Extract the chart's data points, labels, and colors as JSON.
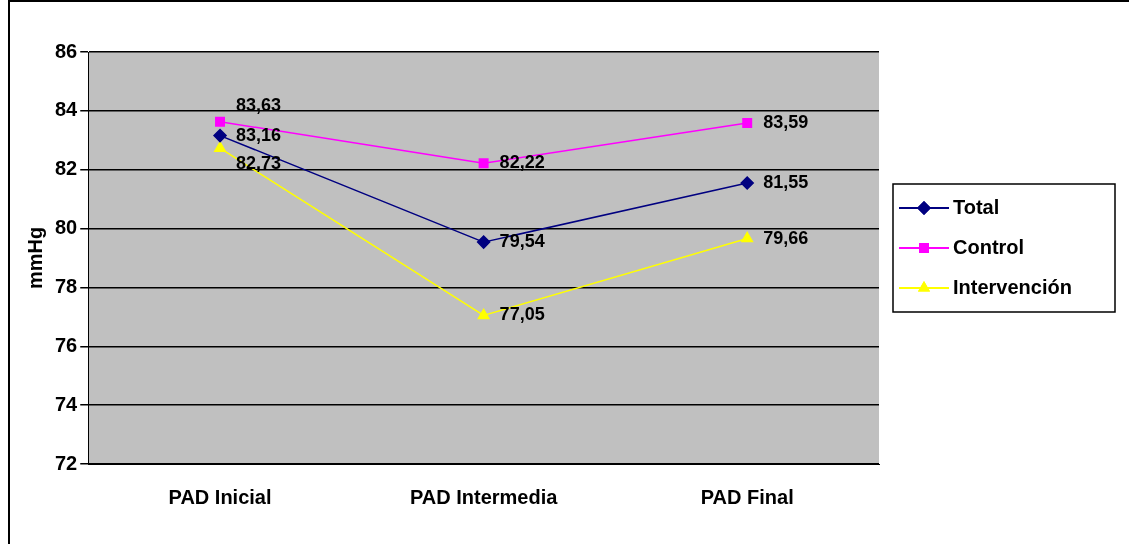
{
  "chart_data": {
    "type": "line",
    "ylabel": "mmHg",
    "categories": [
      "PAD Inicial",
      "PAD Intermedia",
      "PAD Final"
    ],
    "series": [
      {
        "name": "Total",
        "color": "#000080",
        "marker": "diamond",
        "values": [
          83.16,
          79.54,
          81.55
        ],
        "value_labels": [
          "83,16",
          "79,54",
          "81,55"
        ]
      },
      {
        "name": "Control",
        "color": "#ff00ff",
        "marker": "square",
        "values": [
          83.63,
          82.22,
          83.59
        ],
        "value_labels": [
          "83,63",
          "82,22",
          "83,59"
        ]
      },
      {
        "name": "Intervención",
        "color": "#ffff00",
        "marker": "triangle",
        "values": [
          82.73,
          77.05,
          79.66
        ],
        "value_labels": [
          "82,73",
          "77,05",
          "79,66"
        ]
      }
    ],
    "ylim": [
      72,
      86
    ],
    "yticks": [
      72,
      74,
      76,
      78,
      80,
      82,
      84,
      86
    ],
    "grid": "y",
    "legend": "right",
    "line_style": "solid"
  }
}
